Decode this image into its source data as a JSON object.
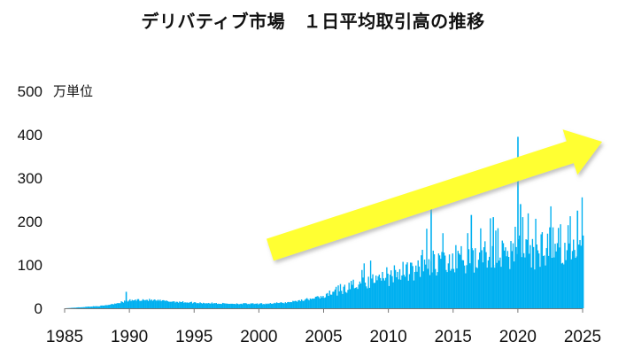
{
  "chart_data": {
    "type": "bar",
    "title": "デリバティブ市場　１日平均取引高の推移",
    "unit_label": "万単位",
    "x_ticks": [
      "1985",
      "1990",
      "1995",
      "2000",
      "2005",
      "2010",
      "2015",
      "2020",
      "2025"
    ],
    "y_ticks": [
      "0",
      "100",
      "200",
      "300",
      "400",
      "500"
    ],
    "xlim": [
      1985,
      2025
    ],
    "ylim": [
      0,
      500
    ],
    "bar_color": "#00b0f0",
    "arrow_color": "#ffff33",
    "annotation": "upward trend arrow",
    "monthly_series_anchors": [
      {
        "x": 1985.0,
        "y": 0
      },
      {
        "x": 1986.0,
        "y": 2
      },
      {
        "x": 1987.0,
        "y": 4
      },
      {
        "x": 1988.0,
        "y": 6
      },
      {
        "x": 1989.0,
        "y": 12
      },
      {
        "x": 1990.0,
        "y": 18
      },
      {
        "x": 1991.0,
        "y": 20
      },
      {
        "x": 1993.0,
        "y": 16
      },
      {
        "x": 1995.0,
        "y": 13
      },
      {
        "x": 1997.0,
        "y": 11
      },
      {
        "x": 2000.0,
        "y": 10
      },
      {
        "x": 2002.0,
        "y": 13
      },
      {
        "x": 2004.0,
        "y": 22
      },
      {
        "x": 2005.0,
        "y": 28
      },
      {
        "x": 2006.0,
        "y": 45
      },
      {
        "x": 2007.0,
        "y": 60
      },
      {
        "x": 2008.0,
        "y": 72
      },
      {
        "x": 2009.0,
        "y": 78
      },
      {
        "x": 2010.0,
        "y": 85
      },
      {
        "x": 2011.0,
        "y": 95
      },
      {
        "x": 2012.0,
        "y": 105
      },
      {
        "x": 2013.0,
        "y": 125
      },
      {
        "x": 2014.0,
        "y": 115
      },
      {
        "x": 2015.0,
        "y": 125
      },
      {
        "x": 2016.0,
        "y": 135
      },
      {
        "x": 2017.0,
        "y": 130
      },
      {
        "x": 2018.0,
        "y": 145
      },
      {
        "x": 2019.0,
        "y": 140
      },
      {
        "x": 2020.0,
        "y": 155
      },
      {
        "x": 2021.0,
        "y": 145
      },
      {
        "x": 2022.0,
        "y": 155
      },
      {
        "x": 2023.0,
        "y": 160
      },
      {
        "x": 2024.0,
        "y": 175
      },
      {
        "x": 2025.0,
        "y": 175
      }
    ],
    "spikes": [
      {
        "x": 1989.75,
        "y": 38
      },
      {
        "x": 2013.3,
        "y": 230
      },
      {
        "x": 2016.4,
        "y": 215
      },
      {
        "x": 2018.1,
        "y": 210
      },
      {
        "x": 2020.0,
        "y": 395
      },
      {
        "x": 2020.2,
        "y": 240
      },
      {
        "x": 2024.6,
        "y": 225
      }
    ]
  }
}
